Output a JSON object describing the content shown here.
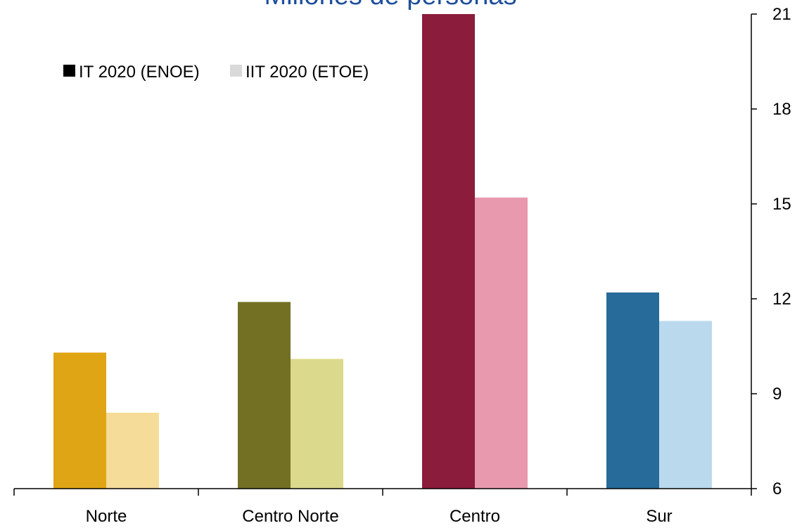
{
  "chart_data": {
    "type": "bar",
    "title": "Millones de personas",
    "categories": [
      "Norte",
      "Centro Norte",
      "Centro",
      "Sur"
    ],
    "series": [
      {
        "name": "IT 2020 (ENOE)",
        "values": [
          10.3,
          11.9,
          21.0,
          12.2
        ],
        "colors": [
          "#e0a514",
          "#737024",
          "#8c1c3b",
          "#266b99"
        ]
      },
      {
        "name": "IIT 2020 (ETOE)",
        "values": [
          8.4,
          10.1,
          15.2,
          11.3
        ],
        "colors": [
          "#f5dc98",
          "#dbd98c",
          "#e999ae",
          "#bad9ed"
        ]
      }
    ],
    "legend": {
      "position": "top-left",
      "swatch_colors": [
        "#000000",
        "#d9d9d9"
      ]
    },
    "yaxis": {
      "side": "right",
      "ylim": [
        6,
        21
      ],
      "ticks": [
        6,
        9,
        12,
        15,
        18,
        21
      ]
    },
    "grid": false
  }
}
